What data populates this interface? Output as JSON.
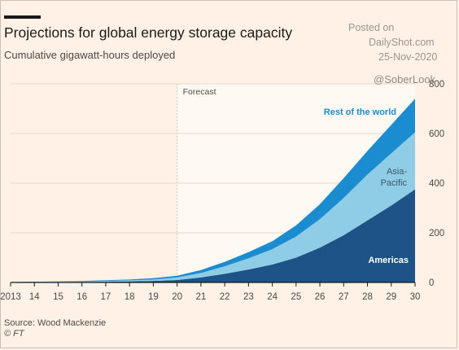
{
  "header": {
    "title": "Projections for global energy storage capacity",
    "subtitle": "Cumulative gigawatt-hours deployed"
  },
  "watermark": {
    "posted": "Posted on",
    "site": "DailyShot.com",
    "date": "25-Nov-2020",
    "handle": "@SoberLook"
  },
  "footer": {
    "source": "Source: Wood Mackenzie",
    "credit": "© FT"
  },
  "colors": {
    "americas": "#1d5387",
    "asia_pacific": "#8fcde6",
    "rest_of_world": "#1a8ccf",
    "forecast_band": "#fff9f3",
    "grid": "#e3d6ca",
    "axis": "#1a1a1a"
  },
  "chart_data": {
    "type": "area",
    "stacked": true,
    "title": "Projections for global energy storage capacity",
    "subtitle": "Cumulative gigawatt-hours deployed",
    "x": [
      2013,
      2014,
      2015,
      2016,
      2017,
      2018,
      2019,
      2020,
      2021,
      2022,
      2023,
      2024,
      2025,
      2026,
      2027,
      2028,
      2029,
      2030
    ],
    "x_tick_labels": [
      "2013",
      "14",
      "15",
      "16",
      "17",
      "18",
      "19",
      "20",
      "21",
      "22",
      "23",
      "24",
      "25",
      "26",
      "27",
      "28",
      "29",
      "30"
    ],
    "y_ticks": [
      0,
      200,
      400,
      600,
      800
    ],
    "ylim": [
      0,
      800
    ],
    "y_axis_position": "right",
    "grid": true,
    "forecast_start": 2020,
    "forecast_label": "Forecast",
    "series": [
      {
        "name": "Americas",
        "color": "#1d5387",
        "values": [
          0.5,
          1,
          1.5,
          2,
          3,
          4,
          6,
          10,
          20,
          35,
          52,
          72,
          100,
          140,
          190,
          250,
          310,
          375
        ]
      },
      {
        "name": "Asia-Pacific",
        "color": "#8fcde6",
        "values": [
          0.5,
          1,
          1.5,
          2,
          3,
          4,
          6,
          10,
          18,
          30,
          45,
          62,
          85,
          115,
          150,
          185,
          210,
          230
        ]
      },
      {
        "name": "Rest of the world",
        "color": "#1a8ccf",
        "values": [
          0.5,
          1,
          1,
          2,
          3,
          4,
          5,
          7,
          12,
          18,
          25,
          32,
          45,
          60,
          80,
          95,
          115,
          135
        ]
      }
    ]
  }
}
